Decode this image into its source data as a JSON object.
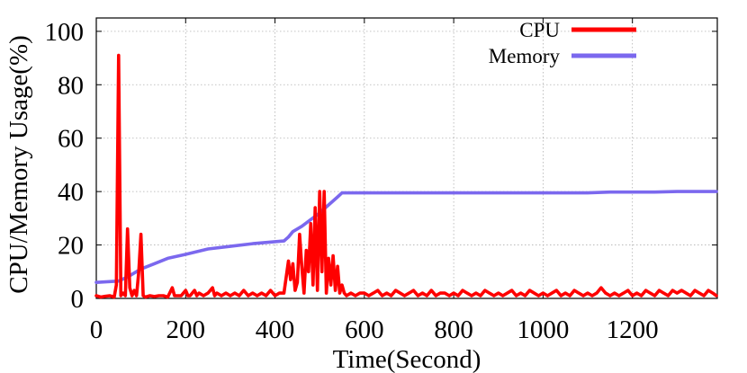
{
  "chart_data": {
    "type": "line",
    "xlabel": "Time(Second)",
    "ylabel": "CPU/Memory Usage(%)",
    "xlim": [
      0,
      1390
    ],
    "ylim": [
      0,
      105
    ],
    "xticks": [
      0,
      200,
      400,
      600,
      800,
      1000,
      1200
    ],
    "yticks": [
      0,
      20,
      40,
      60,
      80,
      100
    ],
    "grid": true,
    "legend": "top-right",
    "series": [
      {
        "name": "CPU",
        "color": "#ff0000",
        "points": [
          [
            0,
            1
          ],
          [
            10,
            0.5
          ],
          [
            20,
            0.8
          ],
          [
            30,
            1
          ],
          [
            40,
            0.5
          ],
          [
            45,
            5
          ],
          [
            50,
            91
          ],
          [
            55,
            1
          ],
          [
            60,
            2
          ],
          [
            65,
            1
          ],
          [
            70,
            26
          ],
          [
            75,
            4
          ],
          [
            80,
            1
          ],
          [
            85,
            3
          ],
          [
            90,
            1
          ],
          [
            95,
            10
          ],
          [
            100,
            24
          ],
          [
            105,
            1
          ],
          [
            110,
            0.5
          ],
          [
            120,
            1
          ],
          [
            130,
            0.7
          ],
          [
            140,
            1
          ],
          [
            150,
            1
          ],
          [
            160,
            0.5
          ],
          [
            170,
            4
          ],
          [
            175,
            1
          ],
          [
            180,
            1
          ],
          [
            190,
            1
          ],
          [
            200,
            3
          ],
          [
            205,
            1
          ],
          [
            210,
            1
          ],
          [
            220,
            3
          ],
          [
            225,
            1
          ],
          [
            230,
            2
          ],
          [
            240,
            1
          ],
          [
            250,
            2
          ],
          [
            260,
            4
          ],
          [
            265,
            1
          ],
          [
            270,
            2
          ],
          [
            280,
            1
          ],
          [
            290,
            2
          ],
          [
            300,
            1
          ],
          [
            310,
            2
          ],
          [
            320,
            1
          ],
          [
            330,
            3
          ],
          [
            340,
            1
          ],
          [
            350,
            2
          ],
          [
            360,
            1
          ],
          [
            370,
            2
          ],
          [
            380,
            1
          ],
          [
            390,
            3
          ],
          [
            400,
            1
          ],
          [
            410,
            2
          ],
          [
            420,
            2
          ],
          [
            425,
            8
          ],
          [
            430,
            14
          ],
          [
            435,
            7
          ],
          [
            440,
            13
          ],
          [
            445,
            3
          ],
          [
            450,
            6
          ],
          [
            455,
            24
          ],
          [
            460,
            12
          ],
          [
            465,
            2
          ],
          [
            470,
            18
          ],
          [
            475,
            10
          ],
          [
            480,
            28
          ],
          [
            485,
            5
          ],
          [
            490,
            34
          ],
          [
            495,
            3
          ],
          [
            500,
            40
          ],
          [
            505,
            10
          ],
          [
            510,
            40
          ],
          [
            515,
            2
          ],
          [
            520,
            15
          ],
          [
            525,
            5
          ],
          [
            530,
            16
          ],
          [
            535,
            3
          ],
          [
            540,
            12
          ],
          [
            545,
            2
          ],
          [
            550,
            5
          ],
          [
            555,
            2
          ],
          [
            560,
            1
          ],
          [
            570,
            2
          ],
          [
            580,
            1
          ],
          [
            590,
            2
          ],
          [
            600,
            2
          ],
          [
            610,
            1
          ],
          [
            620,
            2
          ],
          [
            630,
            3
          ],
          [
            640,
            1
          ],
          [
            650,
            2
          ],
          [
            660,
            1
          ],
          [
            670,
            3
          ],
          [
            680,
            2
          ],
          [
            690,
            1
          ],
          [
            700,
            2
          ],
          [
            710,
            3
          ],
          [
            720,
            1
          ],
          [
            730,
            2
          ],
          [
            740,
            1
          ],
          [
            750,
            3
          ],
          [
            760,
            1
          ],
          [
            770,
            2
          ],
          [
            780,
            2
          ],
          [
            790,
            1
          ],
          [
            800,
            2
          ],
          [
            810,
            1
          ],
          [
            820,
            3
          ],
          [
            830,
            2
          ],
          [
            840,
            1
          ],
          [
            850,
            2
          ],
          [
            860,
            1
          ],
          [
            870,
            3
          ],
          [
            880,
            2
          ],
          [
            890,
            1
          ],
          [
            900,
            2
          ],
          [
            910,
            1
          ],
          [
            920,
            2
          ],
          [
            930,
            3
          ],
          [
            940,
            1
          ],
          [
            950,
            2
          ],
          [
            960,
            1
          ],
          [
            970,
            3
          ],
          [
            980,
            2
          ],
          [
            990,
            1
          ],
          [
            1000,
            2
          ],
          [
            1010,
            1
          ],
          [
            1020,
            2
          ],
          [
            1030,
            3
          ],
          [
            1040,
            1
          ],
          [
            1050,
            2
          ],
          [
            1060,
            1
          ],
          [
            1070,
            3
          ],
          [
            1080,
            2
          ],
          [
            1090,
            1
          ],
          [
            1100,
            2
          ],
          [
            1110,
            1
          ],
          [
            1120,
            2
          ],
          [
            1130,
            4
          ],
          [
            1140,
            2
          ],
          [
            1150,
            1
          ],
          [
            1160,
            2
          ],
          [
            1170,
            1
          ],
          [
            1180,
            2
          ],
          [
            1190,
            3
          ],
          [
            1200,
            1
          ],
          [
            1210,
            2
          ],
          [
            1220,
            1
          ],
          [
            1230,
            3
          ],
          [
            1240,
            2
          ],
          [
            1250,
            1
          ],
          [
            1260,
            3
          ],
          [
            1270,
            2
          ],
          [
            1280,
            1
          ],
          [
            1290,
            3
          ],
          [
            1300,
            2
          ],
          [
            1310,
            3
          ],
          [
            1320,
            2
          ],
          [
            1330,
            1
          ],
          [
            1340,
            3
          ],
          [
            1350,
            2
          ],
          [
            1360,
            1
          ],
          [
            1370,
            3
          ],
          [
            1380,
            2
          ],
          [
            1388,
            1
          ]
        ]
      },
      {
        "name": "Memory",
        "color": "#7b68ee",
        "points": [
          [
            0,
            6
          ],
          [
            50,
            6.5
          ],
          [
            70,
            8
          ],
          [
            100,
            11
          ],
          [
            130,
            13
          ],
          [
            160,
            15
          ],
          [
            200,
            16.5
          ],
          [
            250,
            18.5
          ],
          [
            300,
            19.5
          ],
          [
            350,
            20.5
          ],
          [
            420,
            21.5
          ],
          [
            430,
            23
          ],
          [
            440,
            25
          ],
          [
            460,
            27
          ],
          [
            480,
            29.5
          ],
          [
            500,
            32
          ],
          [
            520,
            35
          ],
          [
            540,
            38
          ],
          [
            550,
            39.5
          ],
          [
            600,
            39.5
          ],
          [
            700,
            39.5
          ],
          [
            800,
            39.5
          ],
          [
            900,
            39.5
          ],
          [
            1000,
            39.5
          ],
          [
            1100,
            39.5
          ],
          [
            1150,
            39.8
          ],
          [
            1250,
            39.8
          ],
          [
            1300,
            40
          ],
          [
            1388,
            40
          ]
        ]
      }
    ]
  }
}
